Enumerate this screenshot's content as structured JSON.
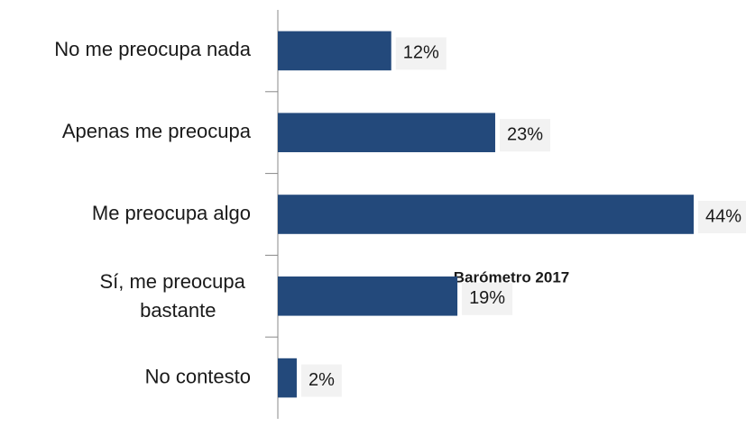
{
  "chart_data": {
    "type": "bar",
    "orientation": "horizontal",
    "categories": [
      "No me preocupa nada",
      "Apenas me preocupa",
      "Me preocupa algo",
      "Sí, me preocupa bastante",
      "No contesto"
    ],
    "values": [
      12,
      23,
      44,
      19,
      2
    ],
    "value_labels": [
      "12%",
      "23%",
      "44%",
      "19%",
      "2%"
    ],
    "color": "#23497b",
    "xlim": [
      0,
      44
    ],
    "annotation": "Barómetro 2017"
  }
}
